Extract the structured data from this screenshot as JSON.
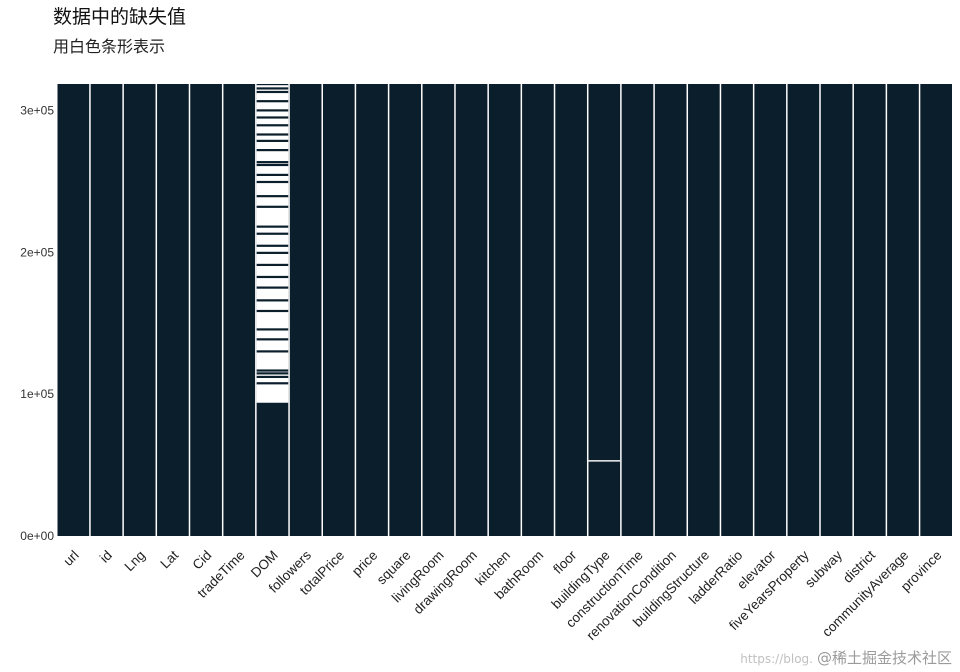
{
  "chart_data": {
    "type": "heatmap",
    "title": "数据中的缺失值",
    "subtitle": "用白色条形表示",
    "xlabel": "",
    "ylabel": "",
    "ylim": [
      0,
      318851
    ],
    "y_ticks": [
      {
        "value": 0,
        "label": "0e+00"
      },
      {
        "value": 100000,
        "label": "1e+05"
      },
      {
        "value": 200000,
        "label": "2e+05"
      },
      {
        "value": 300000,
        "label": "3e+05"
      }
    ],
    "categories": [
      "url",
      "id",
      "Lng",
      "Lat",
      "Cid",
      "tradeTime",
      "DOM",
      "followers",
      "totalPrice",
      "price",
      "square",
      "livingRoom",
      "drawingRoom",
      "kitchen",
      "bathRoom",
      "floor",
      "buildingType",
      "constructionTime",
      "renovationCondition",
      "buildingStructure",
      "ladderRatio",
      "elevator",
      "fiveYearsProperty",
      "subway",
      "district",
      "communityAverage",
      "province"
    ],
    "colors": {
      "present": "#0b1e2c",
      "missing": "#ffffff",
      "divider": "#ffffff"
    },
    "missing_ranges": {
      "DOM": [
        [
          318000,
          94000
        ]
      ],
      "buildingType": [
        [
          53500,
          52500
        ]
      ]
    },
    "present_bands_within_missing": {
      "DOM": [
        316500,
        314000,
        307500,
        301000,
        296000,
        290500,
        284000,
        279500,
        273000,
        264500,
        262500,
        255500,
        250500,
        240500,
        233000,
        219000,
        214000,
        205500,
        200500,
        192000,
        183500,
        176000,
        167000,
        159500,
        146500,
        139500,
        131000,
        117500,
        115500,
        113000,
        108500
      ]
    },
    "grid": false,
    "legend": "none"
  },
  "watermark": {
    "prefix": "https://blog.",
    "text": "@稀土掘金技术社区"
  }
}
